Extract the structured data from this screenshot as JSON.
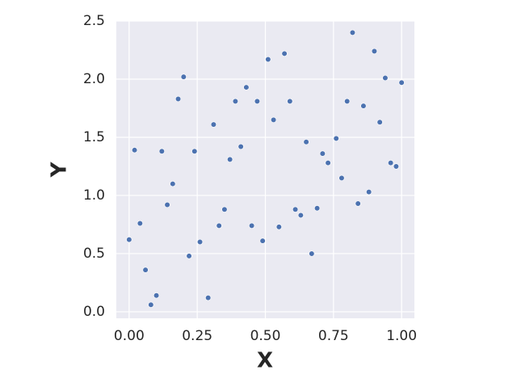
{
  "chart_data": {
    "type": "scatter",
    "x_label": "X",
    "y_label": "Y",
    "color": "#4c72b0",
    "grid": true,
    "xlim": [
      -0.047,
      1.047
    ],
    "ylim": [
      -0.056,
      2.5
    ],
    "xticks": [
      {
        "value": 0,
        "label": "0.00"
      },
      0.25,
      {
        "value": 0.5,
        "label": "0.50"
      },
      0.75,
      {
        "value": 1,
        "label": "1.00"
      }
    ],
    "yticks": [
      {
        "value": 0,
        "label": "0.0"
      },
      0.5,
      {
        "value": 1,
        "label": "1.0"
      },
      1.5,
      {
        "value": 2,
        "label": "2.0"
      },
      2.5
    ],
    "x": [
      0.0,
      0.02,
      0.04,
      0.06,
      0.08,
      0.1,
      0.12,
      0.14,
      0.16,
      0.18,
      0.2,
      0.22,
      0.24,
      0.26,
      0.29,
      0.31,
      0.33,
      0.35,
      0.37,
      0.39,
      0.41,
      0.43,
      0.45,
      0.47,
      0.49,
      0.51,
      0.53,
      0.55,
      0.57,
      0.59,
      0.61,
      0.63,
      0.65,
      0.67,
      0.69,
      0.71,
      0.73,
      0.76,
      0.78,
      0.8,
      0.82,
      0.84,
      0.86,
      0.88,
      0.9,
      0.92,
      0.94,
      0.96,
      0.98,
      1.0
    ],
    "values": [
      0.62,
      1.39,
      0.76,
      0.36,
      0.06,
      0.14,
      1.38,
      0.92,
      1.1,
      1.83,
      2.02,
      0.48,
      1.38,
      0.6,
      0.12,
      1.61,
      0.74,
      0.88,
      1.31,
      1.81,
      1.42,
      1.93,
      0.74,
      1.81,
      0.61,
      2.17,
      1.65,
      0.73,
      2.22,
      1.81,
      0.88,
      0.83,
      1.46,
      0.5,
      0.89,
      1.36,
      1.28,
      1.49,
      1.15,
      1.81,
      2.4,
      0.93,
      1.77,
      1.03,
      2.24,
      1.63,
      2.01,
      1.28,
      1.25,
      1.97
    ]
  }
}
